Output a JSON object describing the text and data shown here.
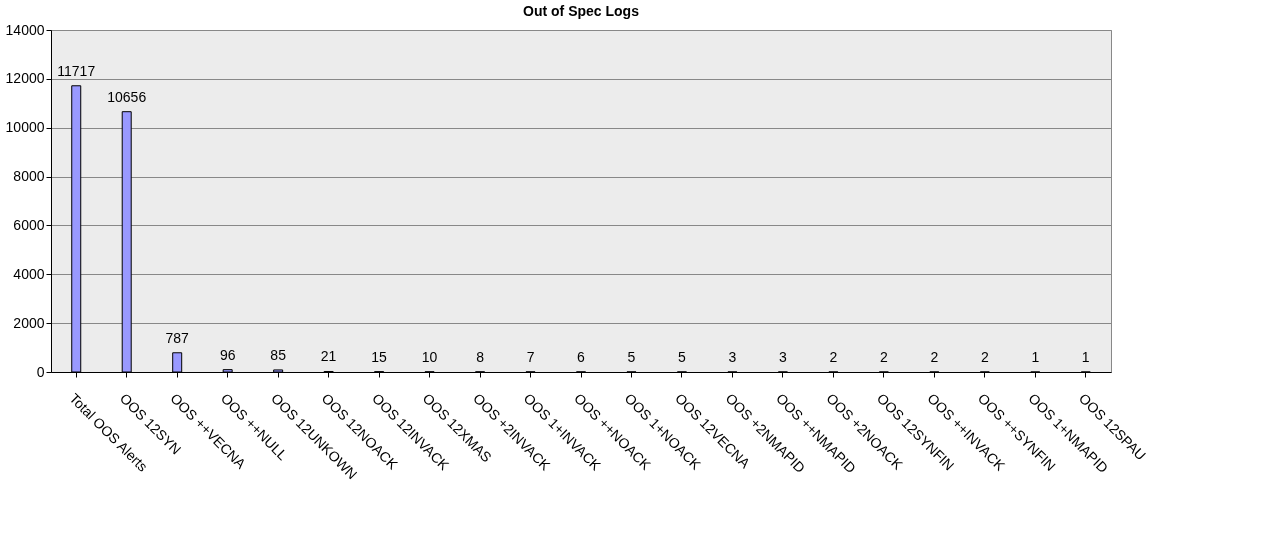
{
  "chart_data": {
    "type": "bar",
    "title": "Out of Spec Logs",
    "categories": [
      "Total OOS Alerts",
      "OOS 12SYN",
      "OOS ++VECNA",
      "OOS ++NULL",
      "OOS 12UNKOWN",
      "OOS 12NOACK",
      "OOS 12INVACK",
      "OOS 12XMAS",
      "OOS +2INVACK",
      "OOS 1+INVACK",
      "OOS ++NOACK",
      "OOS 1+NOACK",
      "OOS 12VECNA",
      "OOS +2NMAPID",
      "OOS ++NMAPID",
      "OOS +2NOACK",
      "OOS 12SYNFIN",
      "OOS ++INVACK",
      "OOS ++SYNFIN",
      "OOS 1+NMAPID",
      "OOS 12SPAU"
    ],
    "values": [
      11717,
      10656,
      787,
      96,
      85,
      21,
      15,
      10,
      8,
      7,
      6,
      5,
      5,
      3,
      3,
      2,
      2,
      2,
      2,
      1,
      1
    ],
    "color": "#9999ff",
    "ylim": [
      0,
      14000
    ],
    "yticks": [
      0,
      2000,
      4000,
      6000,
      8000,
      10000,
      12000,
      14000
    ],
    "grid": "y",
    "data_labels": true
  }
}
